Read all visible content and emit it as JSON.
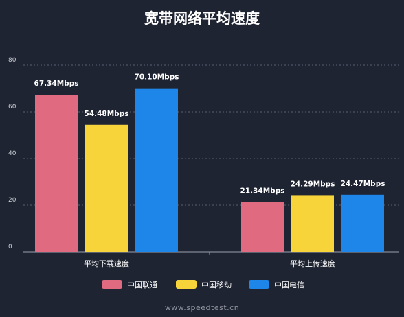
{
  "chart_data": {
    "type": "bar",
    "title": "宽带网络平均速度",
    "categories": [
      "平均下载速度",
      "平均上传速度"
    ],
    "series": [
      {
        "name": "中国联通",
        "color": "#e06b80",
        "values": [
          67.34,
          21.34
        ],
        "labels": [
          "67.34Mbps",
          "21.34Mbps"
        ]
      },
      {
        "name": "中国移动",
        "color": "#f7d43a",
        "values": [
          54.48,
          24.29
        ],
        "labels": [
          "54.48Mbps",
          "24.29Mbps"
        ]
      },
      {
        "name": "中国电信",
        "color": "#1e86e8",
        "values": [
          70.1,
          24.47
        ],
        "labels": [
          "70.10Mbps",
          "24.47Mbps"
        ]
      }
    ],
    "ylim": [
      0,
      80
    ],
    "yticks": [
      0,
      20,
      40,
      60,
      80
    ],
    "grid": true,
    "legend_position": "bottom"
  },
  "footer": "www.speedtest.cn"
}
